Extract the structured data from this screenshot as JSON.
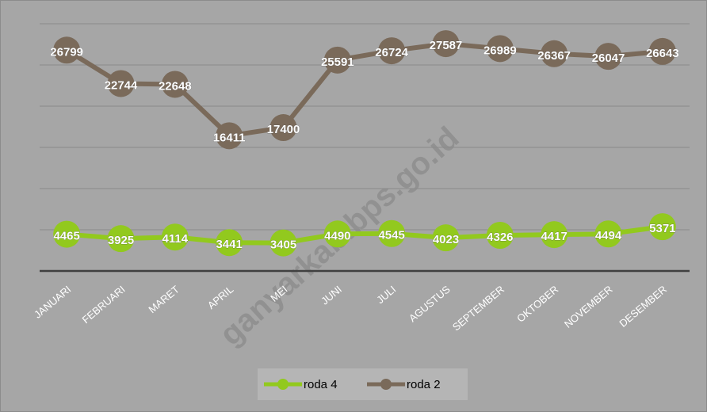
{
  "chart_data": {
    "type": "line",
    "categories": [
      "JANUARI",
      "FEBRUARI",
      "MARET",
      "APRIL",
      "MEI",
      "JUNI",
      "JULI",
      "AGUSTUS",
      "SEPTEMBER",
      "OKTOBER",
      "NOVEMBER",
      "DESEMBER"
    ],
    "series": [
      {
        "name": "roda 4",
        "color": "#92c91e",
        "values": [
          4465,
          3925,
          4114,
          3441,
          3405,
          4490,
          4545,
          4023,
          4326,
          4417,
          4494,
          5371
        ]
      },
      {
        "name": "roda 2",
        "color": "#7a6a5a",
        "values": [
          26799,
          22744,
          22648,
          16411,
          17400,
          25591,
          26724,
          27587,
          26989,
          26367,
          26047,
          26643
        ]
      }
    ],
    "ylim": [
      0,
      30000
    ],
    "yticks": [
      0,
      5000,
      10000,
      15000,
      20000,
      25000,
      30000
    ],
    "grid": true,
    "legend": "bottom",
    "watermark": "ganyarkab.bps.go.id"
  }
}
